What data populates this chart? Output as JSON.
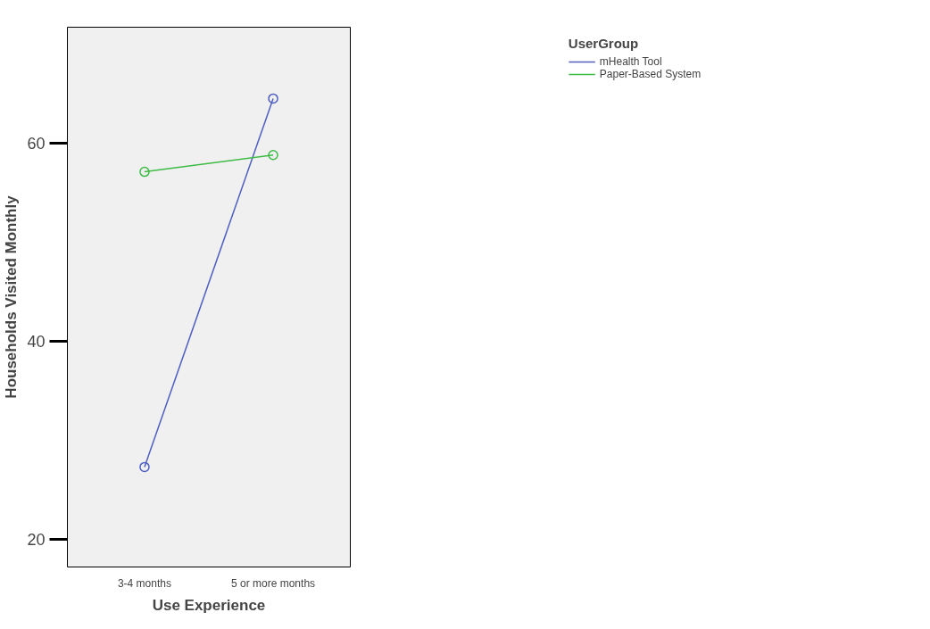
{
  "chart_data": {
    "type": "line",
    "xlabel": "Use Experience",
    "ylabel": "Households Visited Monthly",
    "legend_title": "UserGroup",
    "categories": [
      "3-4 months",
      "5 or more months"
    ],
    "series": [
      {
        "name": "mHealth Tool",
        "color": "#4f5fc0",
        "values": [
          27.3,
          64.5
        ]
      },
      {
        "name": "Paper-Based System",
        "color": "#3dbb45",
        "values": [
          57.1,
          58.8
        ]
      }
    ],
    "ylim": [
      17.2,
      71.7
    ],
    "yticks": [
      20,
      40,
      60
    ],
    "grid": false,
    "legend": "top right",
    "marker": "circle",
    "line_style": "solid"
  }
}
